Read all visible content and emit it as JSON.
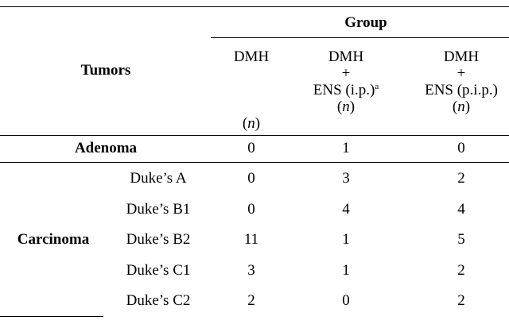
{
  "header": {
    "tumors_label": "Tumors",
    "group_label": "Group",
    "columns": [
      {
        "line1": "DMH",
        "line2": "",
        "line3": "",
        "n_label": "n"
      },
      {
        "line1": "DMH",
        "line2": "+",
        "line3": "ENS (i.p.)",
        "sup": "a",
        "n_label": "n"
      },
      {
        "line1": "DMH",
        "line2": "+",
        "line3": "ENS (p.i.p.)",
        "n_label": "n"
      }
    ]
  },
  "rows": [
    {
      "category": "Adenoma",
      "stage": "",
      "values": [
        "0",
        "1",
        "0"
      ]
    },
    {
      "category": "",
      "stage": "Duke’s A",
      "values": [
        "0",
        "3",
        "2"
      ]
    },
    {
      "category": "",
      "stage": "Duke’s B1",
      "values": [
        "0",
        "4",
        "4"
      ]
    },
    {
      "category": "Carcinoma",
      "stage": "Duke’s B2",
      "values": [
        "11",
        "1",
        "5"
      ]
    },
    {
      "category": "",
      "stage": "Duke’s C1",
      "values": [
        "3",
        "1",
        "2"
      ]
    },
    {
      "category": "",
      "stage": "Duke’s C2",
      "values": [
        "2",
        "0",
        "2"
      ]
    }
  ]
}
